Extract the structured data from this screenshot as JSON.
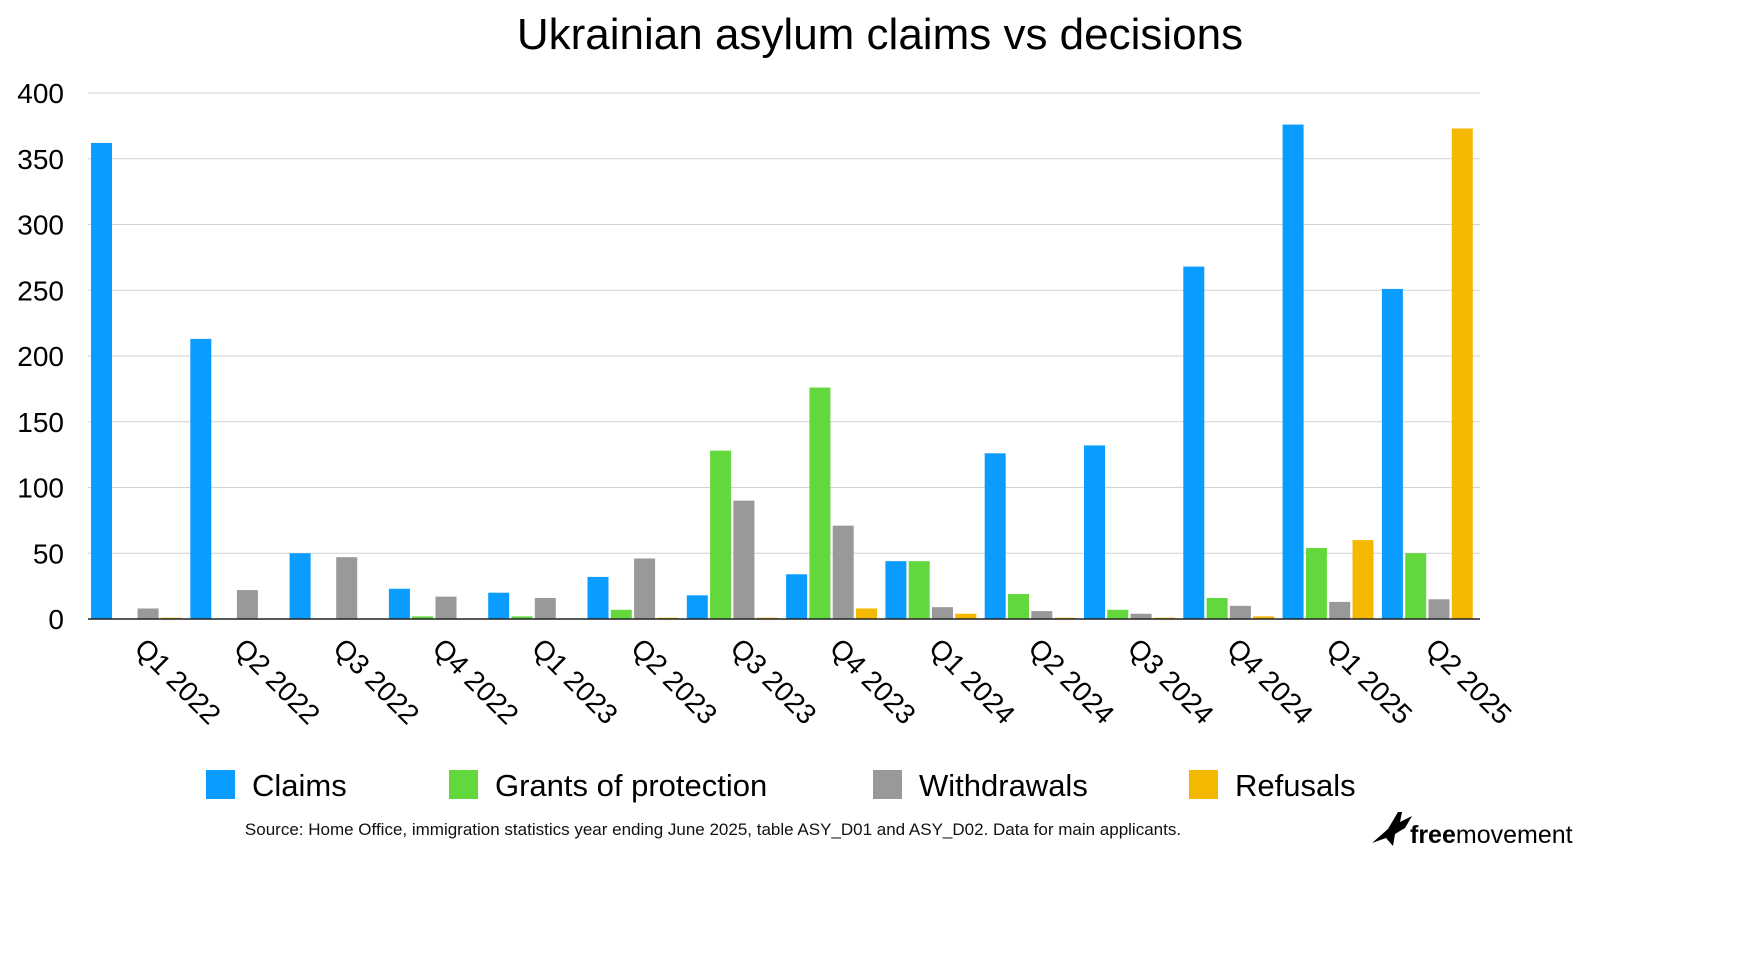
{
  "chart_data": {
    "type": "bar",
    "title": "Ukrainian asylum claims vs decisions",
    "xlabel": "",
    "ylabel": "",
    "ylim": [
      0,
      400
    ],
    "yticks": [
      0,
      50,
      100,
      150,
      200,
      250,
      300,
      350,
      400
    ],
    "grid": true,
    "legend_position": "bottom",
    "categories": [
      "Q1 2022",
      "Q2 2022",
      "Q3 2022",
      "Q4 2022",
      "Q1 2023",
      "Q2 2023",
      "Q3 2023",
      "Q4 2023",
      "Q1 2024",
      "Q2 2024",
      "Q3 2024",
      "Q4 2024",
      "Q1 2025",
      "Q2 2025"
    ],
    "series": [
      {
        "name": "Claims",
        "color": "#0a9cff",
        "values": [
          362,
          213,
          50,
          23,
          20,
          32,
          18,
          34,
          44,
          126,
          132,
          268,
          376,
          251
        ]
      },
      {
        "name": "Grants of protection",
        "color": "#62d83c",
        "values": [
          0,
          0,
          0,
          2,
          2,
          7,
          128,
          176,
          44,
          19,
          7,
          16,
          54,
          50
        ]
      },
      {
        "name": "Withdrawals",
        "color": "#999999",
        "values": [
          8,
          22,
          47,
          17,
          16,
          46,
          90,
          71,
          9,
          6,
          4,
          10,
          13,
          15
        ]
      },
      {
        "name": "Refusals",
        "color": "#f5b800",
        "values": [
          1,
          0,
          0,
          0,
          0,
          1,
          1,
          8,
          4,
          1,
          1,
          2,
          60,
          373
        ]
      }
    ]
  },
  "source": "Source: Home Office, immigration statistics year ending June 2025, table ASY_D01 and ASY_D02. Data for main applicants.",
  "logo": {
    "text_bold": "free",
    "text_regular": "movement",
    "icon": "bird-icon"
  }
}
